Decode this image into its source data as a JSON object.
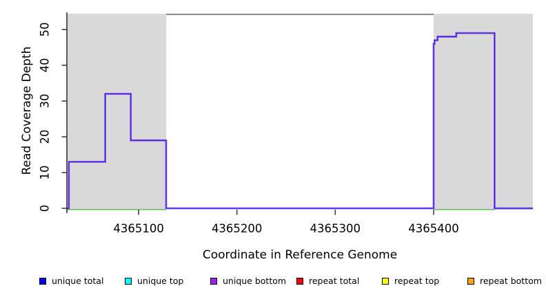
{
  "chart_data": {
    "type": "line",
    "subtype": "step-coverage",
    "title": "",
    "xlabel": "Coordinate in Reference Genome",
    "ylabel": "Read Coverage Depth",
    "xlim": [
      4365027,
      4365501
    ],
    "ylim": [
      0,
      54.4
    ],
    "x_ticks": [
      4365100,
      4365200,
      4365300,
      4365400
    ],
    "y_ticks": [
      0,
      10,
      20,
      30,
      40,
      50
    ],
    "grid": false,
    "legend_position": "bottom",
    "series": [
      {
        "name": "unique coverage (total and bottom strand overlaid)",
        "colors": [
          "#2a17e6",
          "#8a45ea"
        ],
        "style": "step",
        "steps": [
          {
            "from": 4365027,
            "to": 4365029,
            "depth": 0
          },
          {
            "from": 4365029,
            "to": 4365066,
            "depth": 13
          },
          {
            "from": 4365066,
            "to": 4365092,
            "depth": 32
          },
          {
            "from": 4365092,
            "to": 4365128,
            "depth": 19
          },
          {
            "from": 4365128,
            "to": 4365400,
            "depth": 0
          },
          {
            "from": 4365400,
            "to": 4365401,
            "depth": 46
          },
          {
            "from": 4365401,
            "to": 4365404,
            "depth": 47
          },
          {
            "from": 4365404,
            "to": 4365423,
            "depth": 48
          },
          {
            "from": 4365423,
            "to": 4365462,
            "depth": 49
          },
          {
            "from": 4365462,
            "to": 4365501,
            "depth": 0
          }
        ]
      },
      {
        "name": "strand baseline under read regions",
        "color": "#5cbe5c",
        "style": "line",
        "steps": [
          {
            "from": 4365027,
            "to": 4365128,
            "depth": 0
          },
          {
            "from": 4365400,
            "to": 4365462,
            "depth": 0
          }
        ]
      }
    ],
    "shaded_regions": [
      {
        "from": 4365027,
        "to": 4365128
      },
      {
        "from": 4365400,
        "to": 4365501
      }
    ],
    "shaded_color": "#d9d9d9",
    "top_clip_line": {
      "from": 4365128,
      "to": 4365400,
      "color": "#858585"
    }
  },
  "legend": {
    "items": [
      {
        "label": "unique total",
        "color": "#0000ff"
      },
      {
        "label": "unique top",
        "color": "#00ffff"
      },
      {
        "label": "unique bottom",
        "color": "#a020f0"
      },
      {
        "label": "repeat total",
        "color": "#ff0000"
      },
      {
        "label": "repeat top",
        "color": "#ffff00"
      },
      {
        "label": "repeat bottom",
        "color": "#ffa500"
      }
    ]
  }
}
